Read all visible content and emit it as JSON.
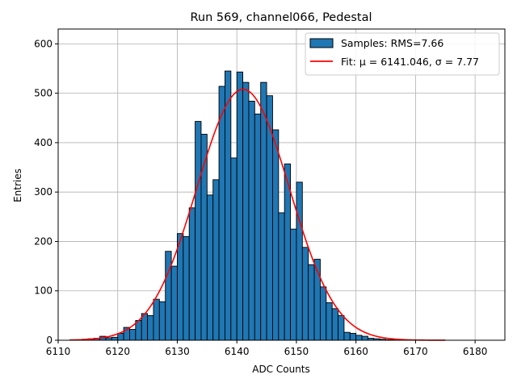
{
  "chart_data": {
    "type": "bar",
    "title": "Run 569, channel066, Pedestal",
    "xlabel": "ADC Counts",
    "ylabel": "Entries",
    "xlim": [
      6110,
      6185
    ],
    "ylim": [
      0,
      630
    ],
    "xticks": [
      6110,
      6120,
      6130,
      6140,
      6150,
      6160,
      6170,
      6180
    ],
    "yticks": [
      0,
      100,
      200,
      300,
      400,
      500,
      600
    ],
    "grid": true,
    "legend_position": "top-right",
    "colors": {
      "bars": "#1f77b4",
      "bar_edge": "#000000",
      "fit": "#ff0000",
      "grid": "#b0b0b0"
    },
    "histogram": {
      "name": "Samples: RMS=7.66",
      "bin_start": 6112,
      "bin_width": 1,
      "counts": [
        1,
        1,
        2,
        3,
        4,
        8,
        5,
        6,
        14,
        26,
        22,
        40,
        54,
        50,
        83,
        78,
        180,
        150,
        216,
        210,
        268,
        443,
        417,
        294,
        325,
        514,
        545,
        369,
        543,
        522,
        484,
        458,
        522,
        495,
        426,
        258,
        357,
        225,
        320,
        188,
        153,
        164,
        108,
        76,
        64,
        50,
        16,
        14,
        10,
        8,
        4,
        3,
        2,
        1,
        1
      ]
    },
    "fit": {
      "name": "Fit: μ = 6141.046, σ = 7.77",
      "mu": 6141.046,
      "sigma": 7.77,
      "amplitude": 508,
      "x_range": [
        6112,
        6175
      ]
    }
  }
}
